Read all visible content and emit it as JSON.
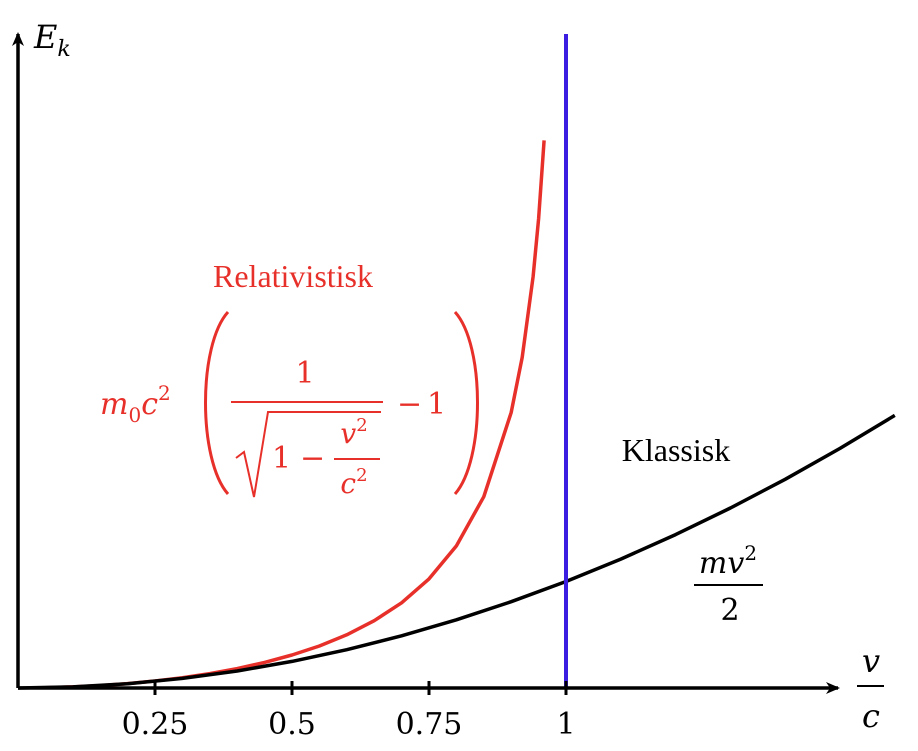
{
  "chart_data": {
    "type": "line",
    "axes": {
      "x_label_top": "v",
      "x_label_bottom": "c",
      "y_label_main": "E",
      "y_label_sub": "k",
      "x_ticks": [
        {
          "value": 0.25,
          "label": "0.25"
        },
        {
          "value": 0.5,
          "label": "0.5"
        },
        {
          "value": 0.75,
          "label": "0.75"
        },
        {
          "value": 1,
          "label": "1"
        }
      ],
      "grid": false
    },
    "series": [
      {
        "name": "Relativistisk",
        "color": "#e8302a",
        "formula": {
          "prefix_main": "m",
          "prefix_sub": "0",
          "prefix_c": "c",
          "prefix_sup": "2",
          "numerator": "1",
          "radical_one": "1",
          "minus1": "−",
          "frac_num_base": "v",
          "frac_num_sup": "2",
          "frac_den_base": "c",
          "frac_den_sup": "2",
          "minus2": "−",
          "tail": "1"
        },
        "x": [
          0.05,
          0.1,
          0.15,
          0.2,
          0.25,
          0.3,
          0.35,
          0.4,
          0.45,
          0.5,
          0.55,
          0.6,
          0.65,
          0.7,
          0.75,
          0.8,
          0.85,
          0.9,
          0.92,
          0.94,
          0.95,
          0.96
        ],
        "y": [
          0.00125,
          0.00504,
          0.0114,
          0.0206,
          0.0328,
          0.0483,
          0.0675,
          0.0911,
          0.12,
          0.155,
          0.197,
          0.25,
          0.316,
          0.4,
          0.512,
          0.667,
          0.898,
          1.294,
          1.552,
          1.931,
          2.203,
          2.571
        ]
      },
      {
        "name": "Klassisk",
        "color": "#000000",
        "formula": {
          "num_base": "mv",
          "num_sup": "2",
          "den": "2"
        },
        "x": [
          0,
          0.1,
          0.2,
          0.3,
          0.4,
          0.5,
          0.6,
          0.7,
          0.8,
          0.9,
          1.0,
          1.1,
          1.2,
          1.3,
          1.4,
          1.5,
          1.6
        ],
        "y": [
          0,
          0.005,
          0.02,
          0.045,
          0.08,
          0.125,
          0.18,
          0.245,
          0.32,
          0.405,
          0.5,
          0.605,
          0.72,
          0.845,
          0.98,
          1.125,
          1.28
        ]
      }
    ],
    "vertical_line": {
      "x": 1,
      "color": "#3a1de0"
    }
  }
}
